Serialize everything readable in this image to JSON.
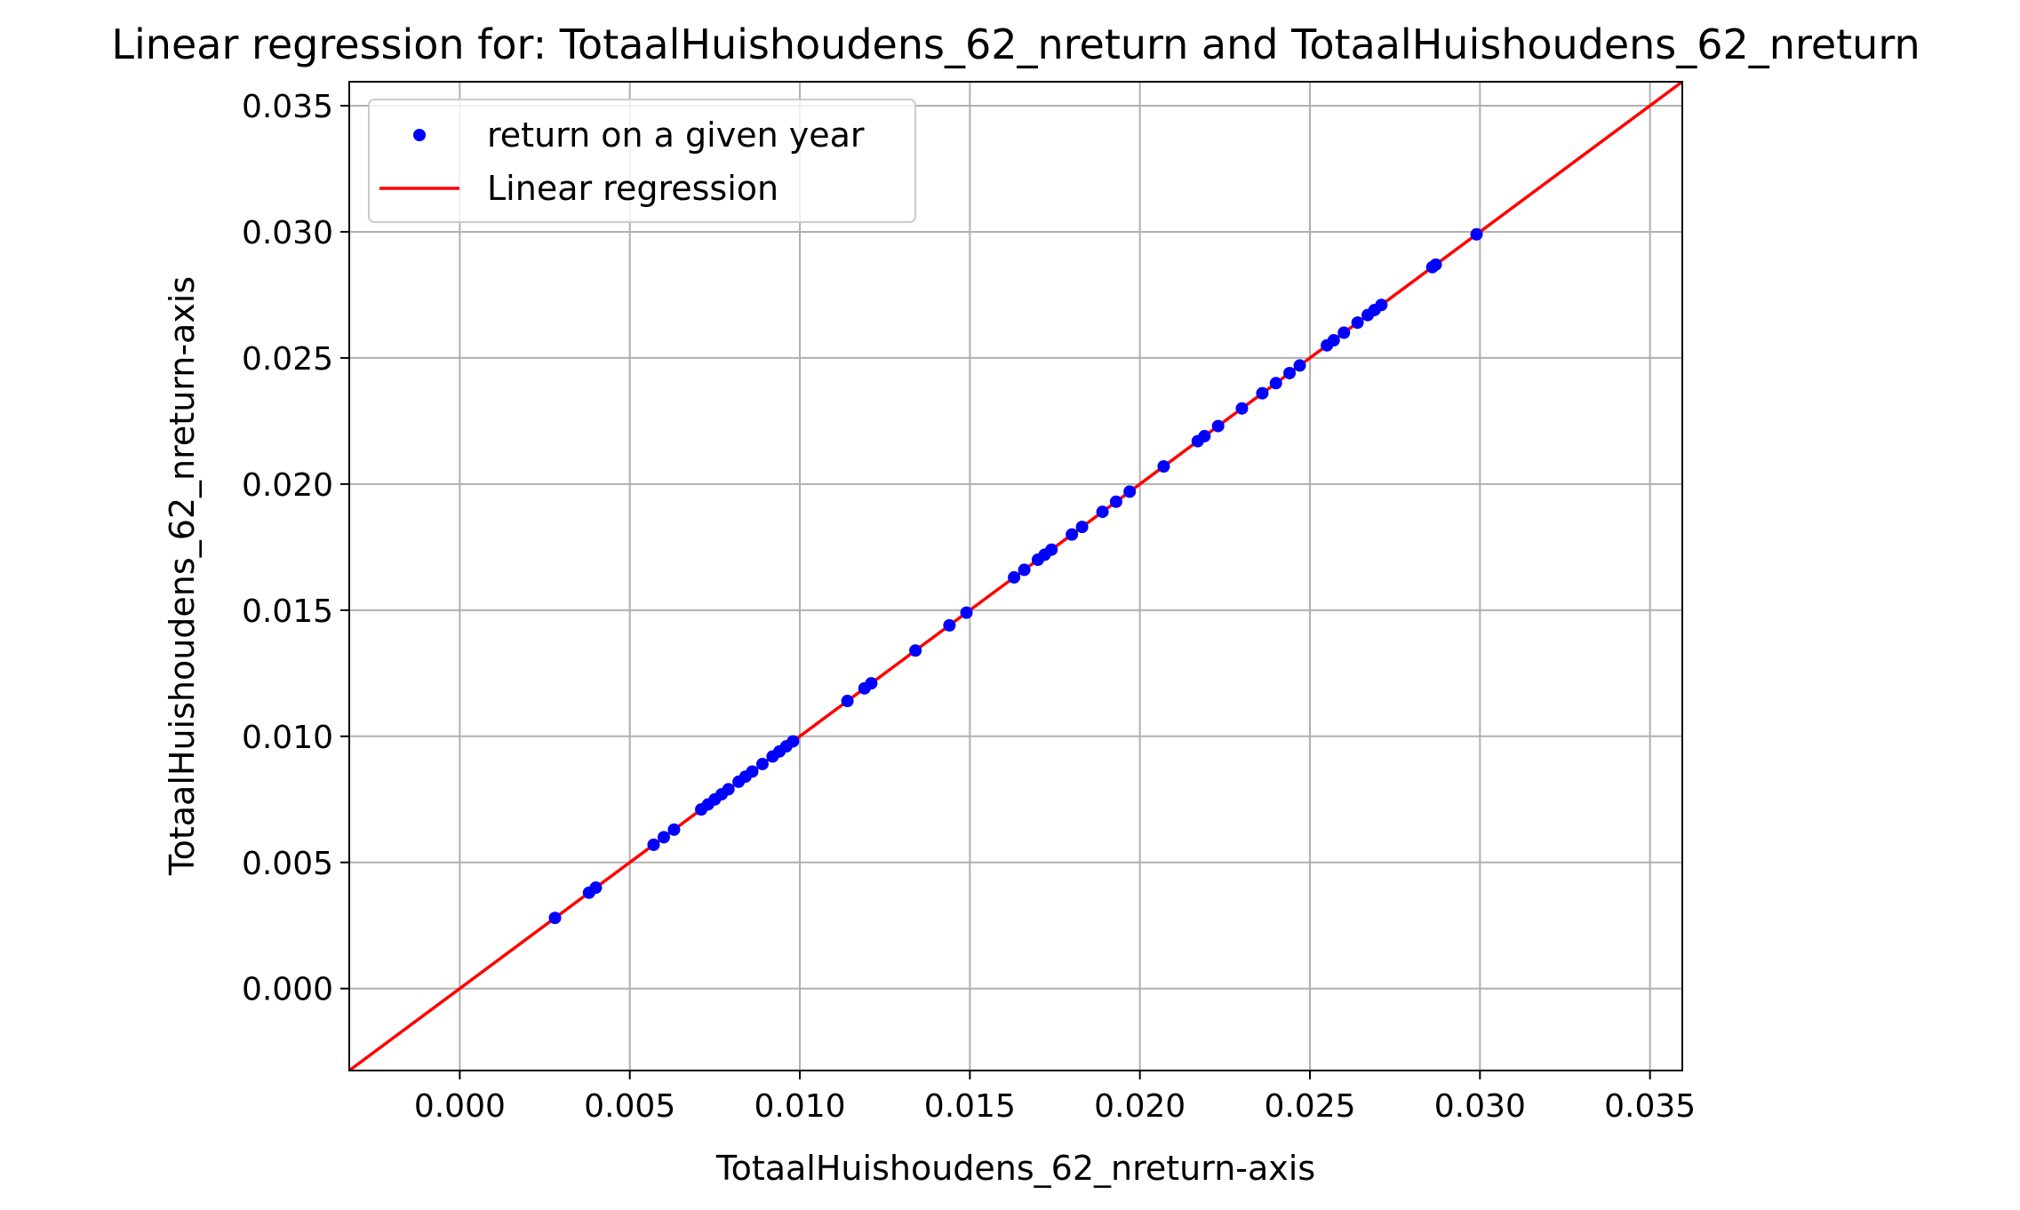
{
  "chart_data": {
    "type": "scatter",
    "title": "Linear regression for: TotaalHuishoudens_62_nreturn and TotaalHuishoudens_62_nreturn",
    "xlabel": "TotaalHuishoudens_62_nreturn-axis",
    "ylabel": "TotaalHuishoudens_62_nreturn-axis",
    "xlim": [
      -0.00325,
      0.03595
    ],
    "ylim": [
      -0.00325,
      0.03595
    ],
    "xticks": [
      "0.000",
      "0.005",
      "0.010",
      "0.015",
      "0.020",
      "0.025",
      "0.030",
      "0.035"
    ],
    "yticks": [
      "0.000",
      "0.005",
      "0.010",
      "0.015",
      "0.020",
      "0.025",
      "0.030",
      "0.035"
    ],
    "grid": true,
    "legend_position": "top-left",
    "series": [
      {
        "name": "return on a given year",
        "kind": "scatter",
        "color": "#0000ff",
        "points": [
          [
            0.0028,
            0.0028
          ],
          [
            0.0038,
            0.0038
          ],
          [
            0.004,
            0.004
          ],
          [
            0.0057,
            0.0057
          ],
          [
            0.006,
            0.006
          ],
          [
            0.0063,
            0.0063
          ],
          [
            0.0071,
            0.0071
          ],
          [
            0.0073,
            0.0073
          ],
          [
            0.0075,
            0.0075
          ],
          [
            0.0077,
            0.0077
          ],
          [
            0.0079,
            0.0079
          ],
          [
            0.0082,
            0.0082
          ],
          [
            0.0084,
            0.0084
          ],
          [
            0.0086,
            0.0086
          ],
          [
            0.0089,
            0.0089
          ],
          [
            0.0092,
            0.0092
          ],
          [
            0.0094,
            0.0094
          ],
          [
            0.0096,
            0.0096
          ],
          [
            0.0098,
            0.0098
          ],
          [
            0.0114,
            0.0114
          ],
          [
            0.0119,
            0.0119
          ],
          [
            0.0121,
            0.0121
          ],
          [
            0.0134,
            0.0134
          ],
          [
            0.0144,
            0.0144
          ],
          [
            0.0149,
            0.0149
          ],
          [
            0.0163,
            0.0163
          ],
          [
            0.0166,
            0.0166
          ],
          [
            0.017,
            0.017
          ],
          [
            0.0172,
            0.0172
          ],
          [
            0.0174,
            0.0174
          ],
          [
            0.018,
            0.018
          ],
          [
            0.0183,
            0.0183
          ],
          [
            0.0189,
            0.0189
          ],
          [
            0.0193,
            0.0193
          ],
          [
            0.0197,
            0.0197
          ],
          [
            0.0207,
            0.0207
          ],
          [
            0.0217,
            0.0217
          ],
          [
            0.0219,
            0.0219
          ],
          [
            0.0223,
            0.0223
          ],
          [
            0.023,
            0.023
          ],
          [
            0.0236,
            0.0236
          ],
          [
            0.024,
            0.024
          ],
          [
            0.0244,
            0.0244
          ],
          [
            0.0247,
            0.0247
          ],
          [
            0.0255,
            0.0255
          ],
          [
            0.0257,
            0.0257
          ],
          [
            0.026,
            0.026
          ],
          [
            0.0264,
            0.0264
          ],
          [
            0.0267,
            0.0267
          ],
          [
            0.0269,
            0.0269
          ],
          [
            0.0271,
            0.0271
          ],
          [
            0.0286,
            0.0286
          ],
          [
            0.0287,
            0.0287
          ],
          [
            0.0299,
            0.0299
          ]
        ]
      },
      {
        "name": "Linear regression",
        "kind": "line",
        "color": "#ff0000",
        "slope": 1.0,
        "intercept": 0.0
      }
    ]
  }
}
